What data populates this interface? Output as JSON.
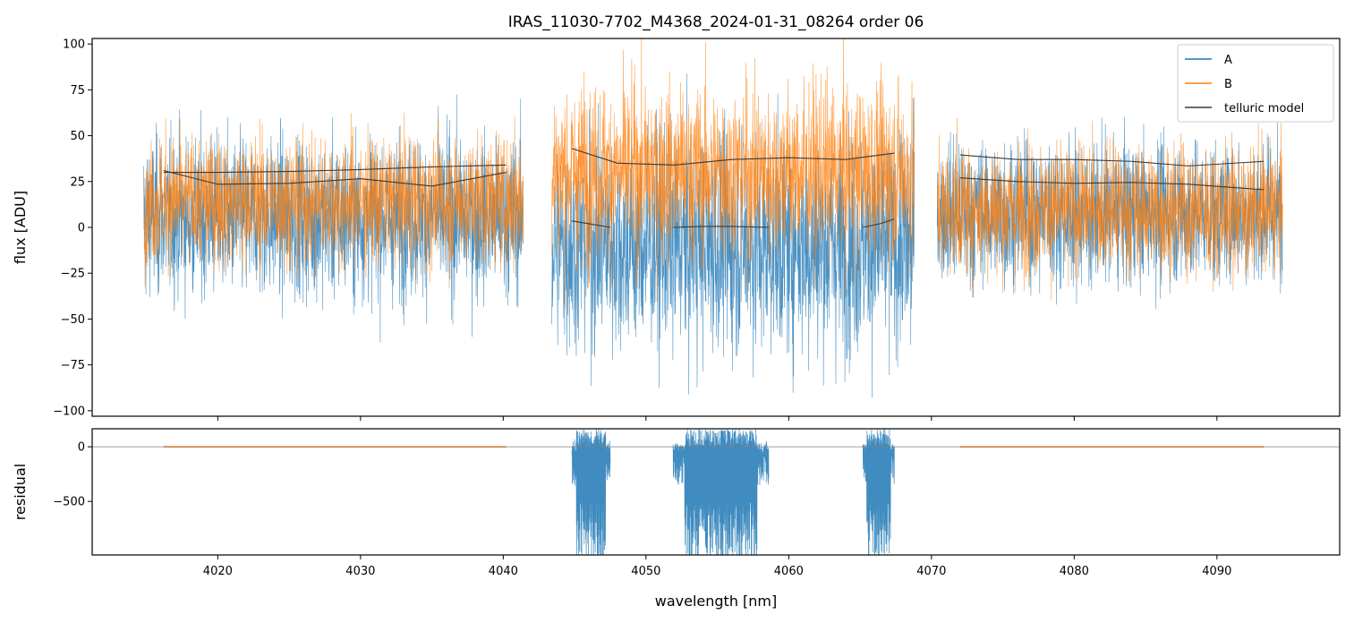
{
  "chart_data": [
    {
      "panel": "top",
      "type": "line",
      "title": "IRAS_11030-7702_M4368_2024-01-31_08264  order 06",
      "xlabel": "",
      "ylabel": "flux [ADU]",
      "xlim": [
        4011.2,
        4098.6
      ],
      "ylim": [
        -103,
        103
      ],
      "yticks": [
        -100,
        -75,
        -50,
        -25,
        0,
        25,
        50,
        75,
        100
      ],
      "ytick_labels": [
        "−100",
        "−75",
        "−50",
        "−25",
        "0",
        "25",
        "50",
        "75",
        "100"
      ],
      "xticks": [
        4020,
        4030,
        4040,
        4050,
        4060,
        4070,
        4080,
        4090
      ],
      "legend": {
        "location": "top-right",
        "entries": [
          {
            "label": "A",
            "color": "#1f77b4"
          },
          {
            "label": "B",
            "color": "#ff7f0e"
          },
          {
            "label": "telluric model",
            "color": "#3a3a3a"
          }
        ]
      },
      "segments": [
        {
          "x_start": 4014.8,
          "x_end": 4041.4
        },
        {
          "x_start": 4043.4,
          "x_end": 4068.8
        },
        {
          "x_start": 4070.4,
          "x_end": 4094.6
        }
      ],
      "series": [
        {
          "name": "A",
          "color": "#1f77b4",
          "noise_center_by_segment": [
            5,
            -10,
            8
          ],
          "noise_amplitude_by_segment": [
            55,
            75,
            50
          ]
        },
        {
          "name": "B",
          "color": "#ff7f0e",
          "noise_center_by_segment": [
            15,
            30,
            10
          ],
          "noise_amplitude_by_segment": [
            45,
            60,
            45
          ]
        }
      ],
      "telluric_model": [
        {
          "x": [
            4016.2,
            4020,
            4025,
            4030,
            4035,
            4040.2
          ],
          "y": [
            30,
            30,
            30.5,
            31.5,
            33,
            34
          ]
        },
        {
          "x": [
            4016.2,
            4020,
            4025,
            4030,
            4035,
            4040.2
          ],
          "y": [
            31,
            23.5,
            24,
            26.5,
            22.5,
            30
          ]
        },
        {
          "x": [
            4044.8,
            4048,
            4052,
            4056,
            4060,
            4064,
            4067.4
          ],
          "y": [
            43,
            35,
            34,
            37,
            38,
            37,
            40.5
          ]
        },
        {
          "x": [
            4044.8,
            4046,
            4047.5
          ],
          "y": [
            3.5,
            2,
            0
          ]
        },
        {
          "x": [
            4051.9,
            4054,
            4056,
            4058.6
          ],
          "y": [
            0,
            0.5,
            0.5,
            0
          ]
        },
        {
          "x": [
            4065.2,
            4066.4,
            4067.4
          ],
          "y": [
            0,
            2,
            4.5
          ]
        },
        {
          "x": [
            4072,
            4076,
            4080,
            4084,
            4088,
            4093.3
          ],
          "y": [
            39.5,
            37,
            37,
            36,
            33.5,
            36
          ]
        },
        {
          "x": [
            4072,
            4076,
            4080,
            4084,
            4088,
            4093.3
          ],
          "y": [
            27,
            25,
            24,
            24.5,
            23.5,
            20.5
          ]
        }
      ]
    },
    {
      "panel": "bottom",
      "type": "line",
      "title": "",
      "xlabel": "wavelength [nm]",
      "ylabel": "residual",
      "xlim": [
        4011.2,
        4098.6
      ],
      "ylim": [
        -990,
        165
      ],
      "yticks": [
        -500,
        0
      ],
      "ytick_labels": [
        "−500",
        "0"
      ],
      "xticks": [
        4020,
        4030,
        4040,
        4050,
        4060,
        4070,
        4080,
        4090
      ],
      "xtick_labels": [
        "4020",
        "4030",
        "4040",
        "4050",
        "4060",
        "4070",
        "4080",
        "4090"
      ],
      "hline_y": 0,
      "near_zero_ranges": [
        [
          4016.2,
          4040.2
        ],
        [
          4072,
          4093.3
        ]
      ],
      "blue_residual_regions": [
        {
          "x_start": 4044.8,
          "x_end": 4047.5,
          "y_min": -990,
          "y_max": 165
        },
        {
          "x_start": 4051.9,
          "x_end": 4058.6,
          "y_min": -990,
          "y_max": 165
        },
        {
          "x_start": 4065.2,
          "x_end": 4067.4,
          "y_min": -990,
          "y_max": 165
        }
      ]
    }
  ]
}
